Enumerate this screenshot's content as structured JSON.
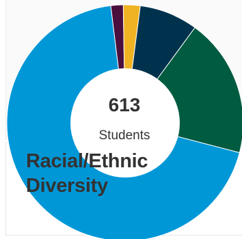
{
  "header": {
    "title": "Racial/Ethnic Diversity"
  },
  "summary": {
    "count": "613",
    "unit": "Students"
  },
  "chart_data": {
    "type": "pie",
    "donut": true,
    "title": "Racial/Ethnic Diversity",
    "center_total": 613,
    "center_label": "Students",
    "values": [
      1.7,
      2.3,
      8.0,
      19.0,
      69.0
    ],
    "colors": [
      "#4a0f3d",
      "#f0b323",
      "#00324d",
      "#005b41",
      "#0097d7"
    ],
    "start_angle_deg": -7,
    "direction": "clockwise"
  }
}
